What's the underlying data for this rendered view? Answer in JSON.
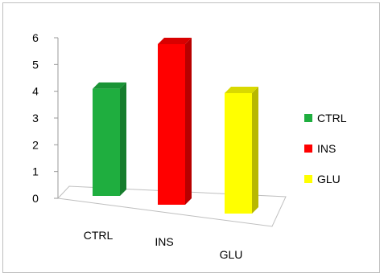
{
  "chart_data": {
    "type": "bar",
    "title": "",
    "xlabel": "",
    "ylabel": "",
    "categories": [
      "CTRL",
      "INS",
      "GLU"
    ],
    "values": [
      4,
      6,
      4.5
    ],
    "ylim": [
      0,
      6
    ],
    "yticks": [
      "0",
      "1",
      "2",
      "3",
      "4",
      "5",
      "6"
    ],
    "grid": false,
    "legend_position": "right",
    "series": [
      {
        "name": "CTRL",
        "color": "#1fae3f"
      },
      {
        "name": "INS",
        "color": "#ff0000"
      },
      {
        "name": "GLU",
        "color": "#ffff00"
      }
    ]
  }
}
